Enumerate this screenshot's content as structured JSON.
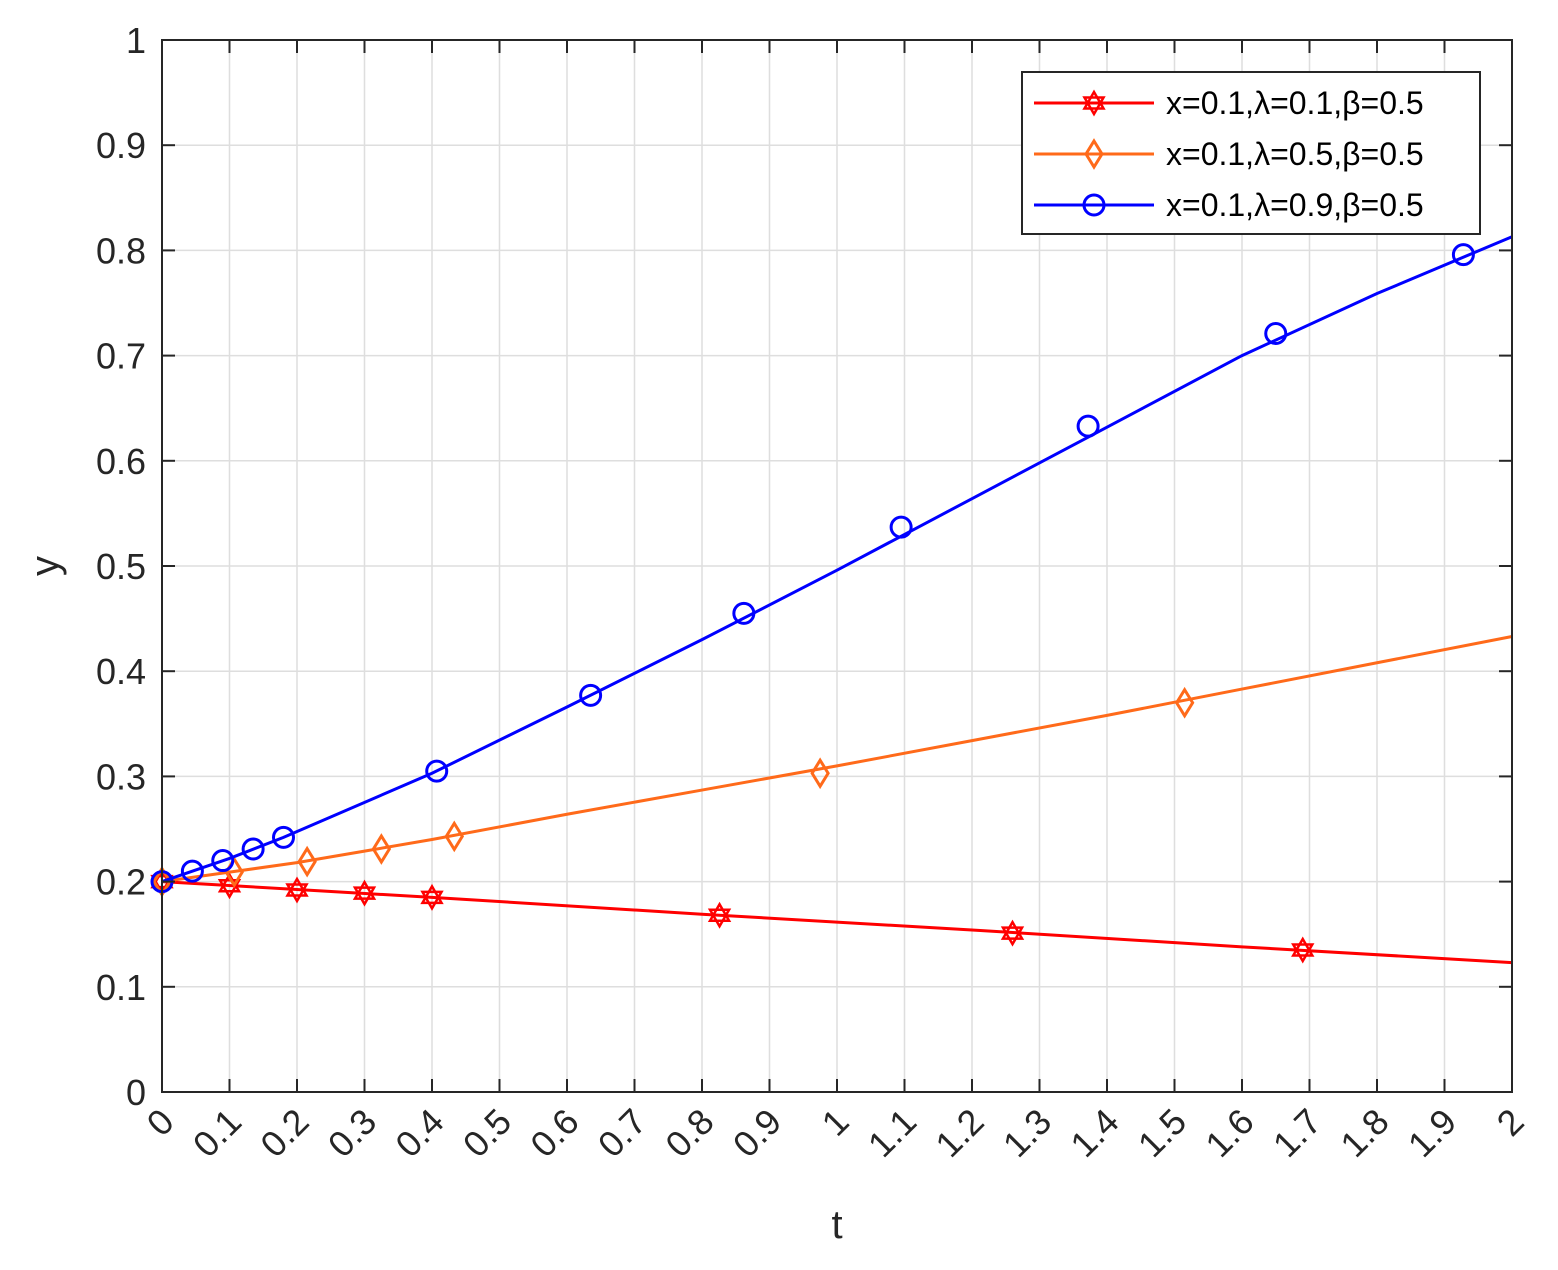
{
  "chart_data": {
    "type": "line",
    "title": "",
    "xlabel": "t",
    "ylabel": "y",
    "xlim": [
      0,
      2
    ],
    "ylim": [
      0,
      1
    ],
    "xticks": [
      "0",
      "0.1",
      "0.2",
      "0.3",
      "0.4",
      "0.5",
      "0.6",
      "0.7",
      "0.8",
      "0.9",
      "1",
      "1.1",
      "1.2",
      "1.3",
      "1.4",
      "1.5",
      "1.6",
      "1.7",
      "1.8",
      "1.9",
      "2"
    ],
    "yticks": [
      "0",
      "0.1",
      "0.2",
      "0.3",
      "0.4",
      "0.5",
      "0.6",
      "0.7",
      "0.8",
      "0.9",
      "1"
    ],
    "grid": true,
    "legend_position": "top-right",
    "series": [
      {
        "name": "x=0.1,λ=0.1,β=0.5",
        "color": "#ff0000",
        "marker": "hexagram",
        "line": {
          "x": [
            0,
            0.4,
            0.8,
            1.2,
            1.6,
            2.0
          ],
          "y": [
            0.2,
            0.185,
            0.169,
            0.154,
            0.138,
            0.123
          ]
        },
        "markers": {
          "x": [
            0,
            0.1,
            0.2,
            0.3,
            0.4,
            0.826,
            1.26,
            1.69
          ],
          "y": [
            0.2,
            0.196,
            0.192,
            0.189,
            0.185,
            0.168,
            0.151,
            0.135
          ]
        }
      },
      {
        "name": "x=0.1,λ=0.5,β=0.5",
        "color": "#ff6a1a",
        "marker": "diamond",
        "line": {
          "x": [
            0,
            0.1,
            0.2,
            0.3,
            0.4,
            0.6,
            0.8,
            1.0,
            1.2,
            1.4,
            1.6,
            1.8,
            2.0
          ],
          "y": [
            0.2,
            0.209,
            0.218,
            0.229,
            0.24,
            0.264,
            0.287,
            0.31,
            0.334,
            0.358,
            0.383,
            0.408,
            0.433
          ]
        },
        "markers": {
          "x": [
            0,
            0.107,
            0.215,
            0.325,
            0.433,
            0.975,
            1.515
          ],
          "y": [
            0.2,
            0.209,
            0.219,
            0.231,
            0.243,
            0.303,
            0.37
          ]
        }
      },
      {
        "name": "x=0.1,λ=0.9,β=0.5",
        "color": "#0000ff",
        "marker": "circle",
        "line": {
          "x": [
            0,
            0.1,
            0.18,
            0.4,
            0.6,
            0.8,
            1.0,
            1.2,
            1.4,
            1.6,
            1.8,
            2.0
          ],
          "y": [
            0.2,
            0.222,
            0.242,
            0.303,
            0.366,
            0.43,
            0.496,
            0.564,
            0.632,
            0.7,
            0.759,
            0.813
          ]
        },
        "markers": {
          "x": [
            0,
            0.045,
            0.09,
            0.135,
            0.18,
            0.407,
            0.635,
            0.862,
            1.095,
            1.372,
            1.65,
            1.928
          ],
          "y": [
            0.2,
            0.21,
            0.22,
            0.231,
            0.242,
            0.305,
            0.377,
            0.455,
            0.537,
            0.633,
            0.721,
            0.796
          ]
        }
      }
    ]
  }
}
